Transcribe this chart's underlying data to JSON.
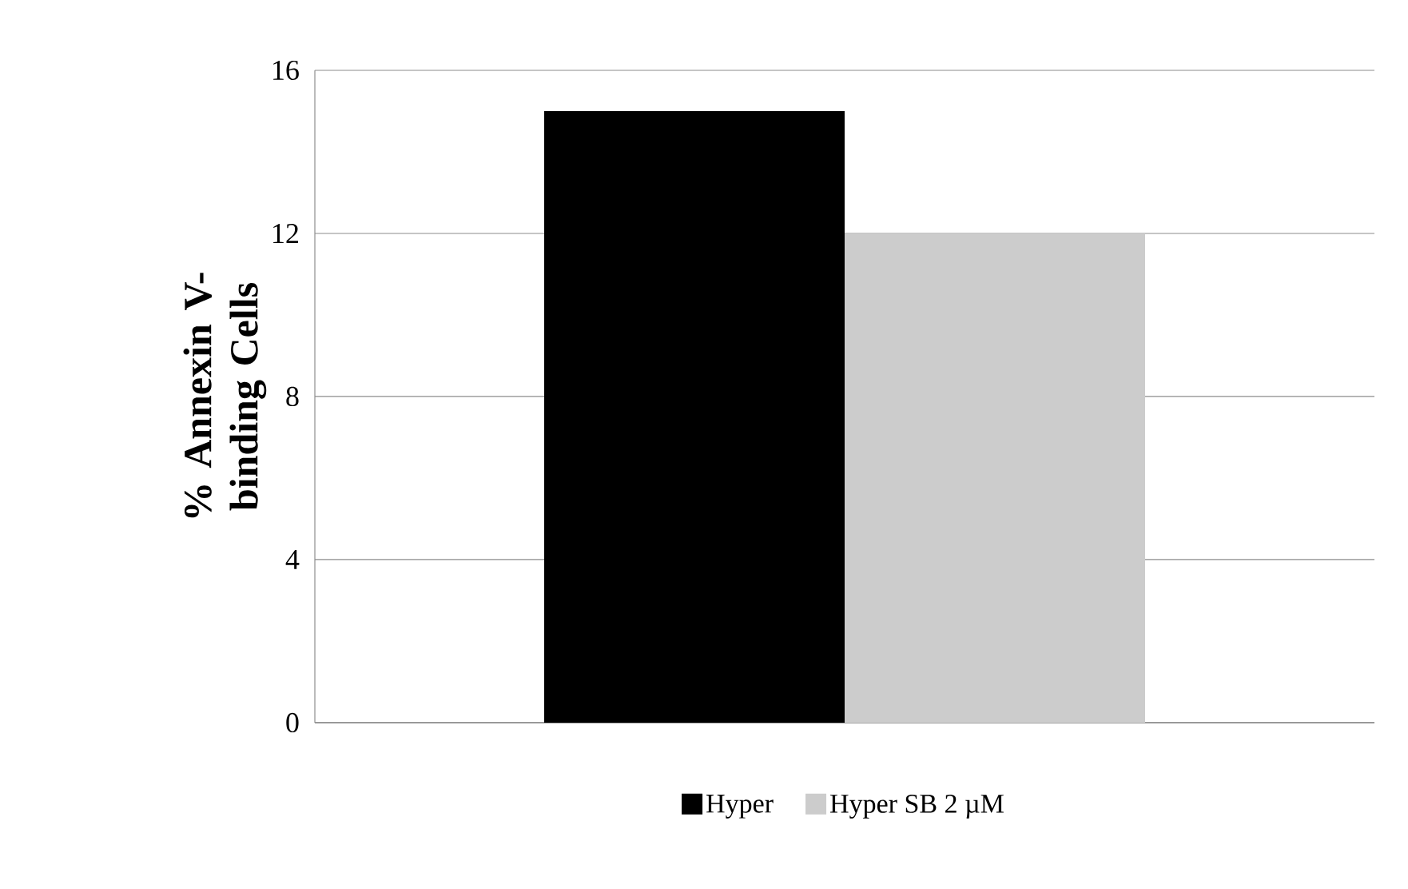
{
  "chart_data": {
    "type": "bar",
    "ylabel": "% Annexin V-binding Cells",
    "categories": [
      null
    ],
    "series": [
      {
        "name": "Hyper",
        "color": "#000000",
        "values": [
          15
        ]
      },
      {
        "name": "Hyper SB 2 µM",
        "color": "#cccccc",
        "values": [
          12
        ]
      }
    ],
    "ylim": [
      0,
      16
    ],
    "yticks": [
      0,
      4,
      8,
      12,
      16
    ],
    "grid": "y",
    "legend": "bottom"
  }
}
